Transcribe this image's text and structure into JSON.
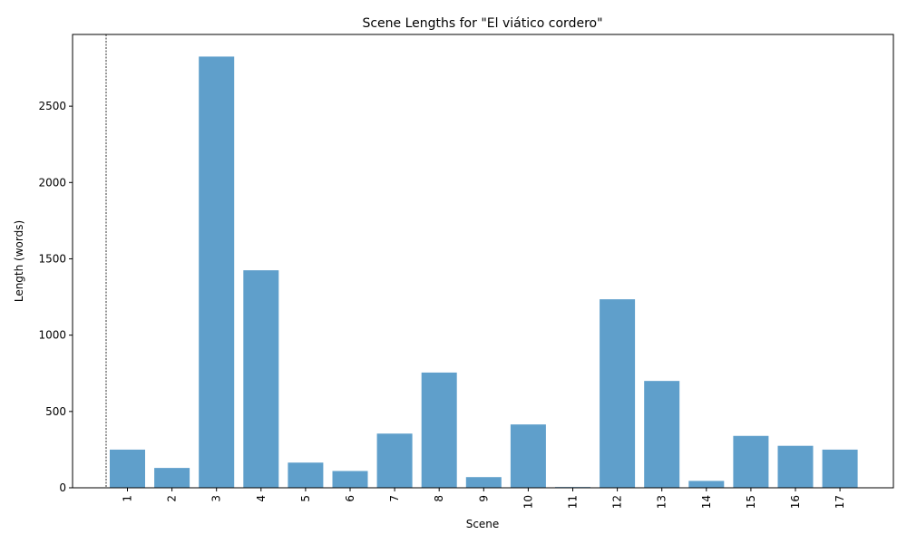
{
  "chart_data": {
    "type": "bar",
    "title": "Scene Lengths for \"El viático cordero\"",
    "xlabel": "Scene",
    "ylabel": "Length (words)",
    "categories": [
      "1",
      "2",
      "3",
      "4",
      "5",
      "6",
      "7",
      "8",
      "9",
      "10",
      "11",
      "12",
      "13",
      "14",
      "15",
      "16",
      "17"
    ],
    "values": [
      250,
      130,
      2825,
      1425,
      165,
      110,
      355,
      755,
      70,
      415,
      5,
      1235,
      700,
      45,
      340,
      275,
      250
    ],
    "ylim": [
      0,
      2970
    ],
    "yticks": [
      0,
      500,
      1000,
      1500,
      2000,
      2500
    ],
    "bar_color": "#5f9fcb",
    "grid": false,
    "marker_line": "dashed vertical line before scene 1"
  }
}
